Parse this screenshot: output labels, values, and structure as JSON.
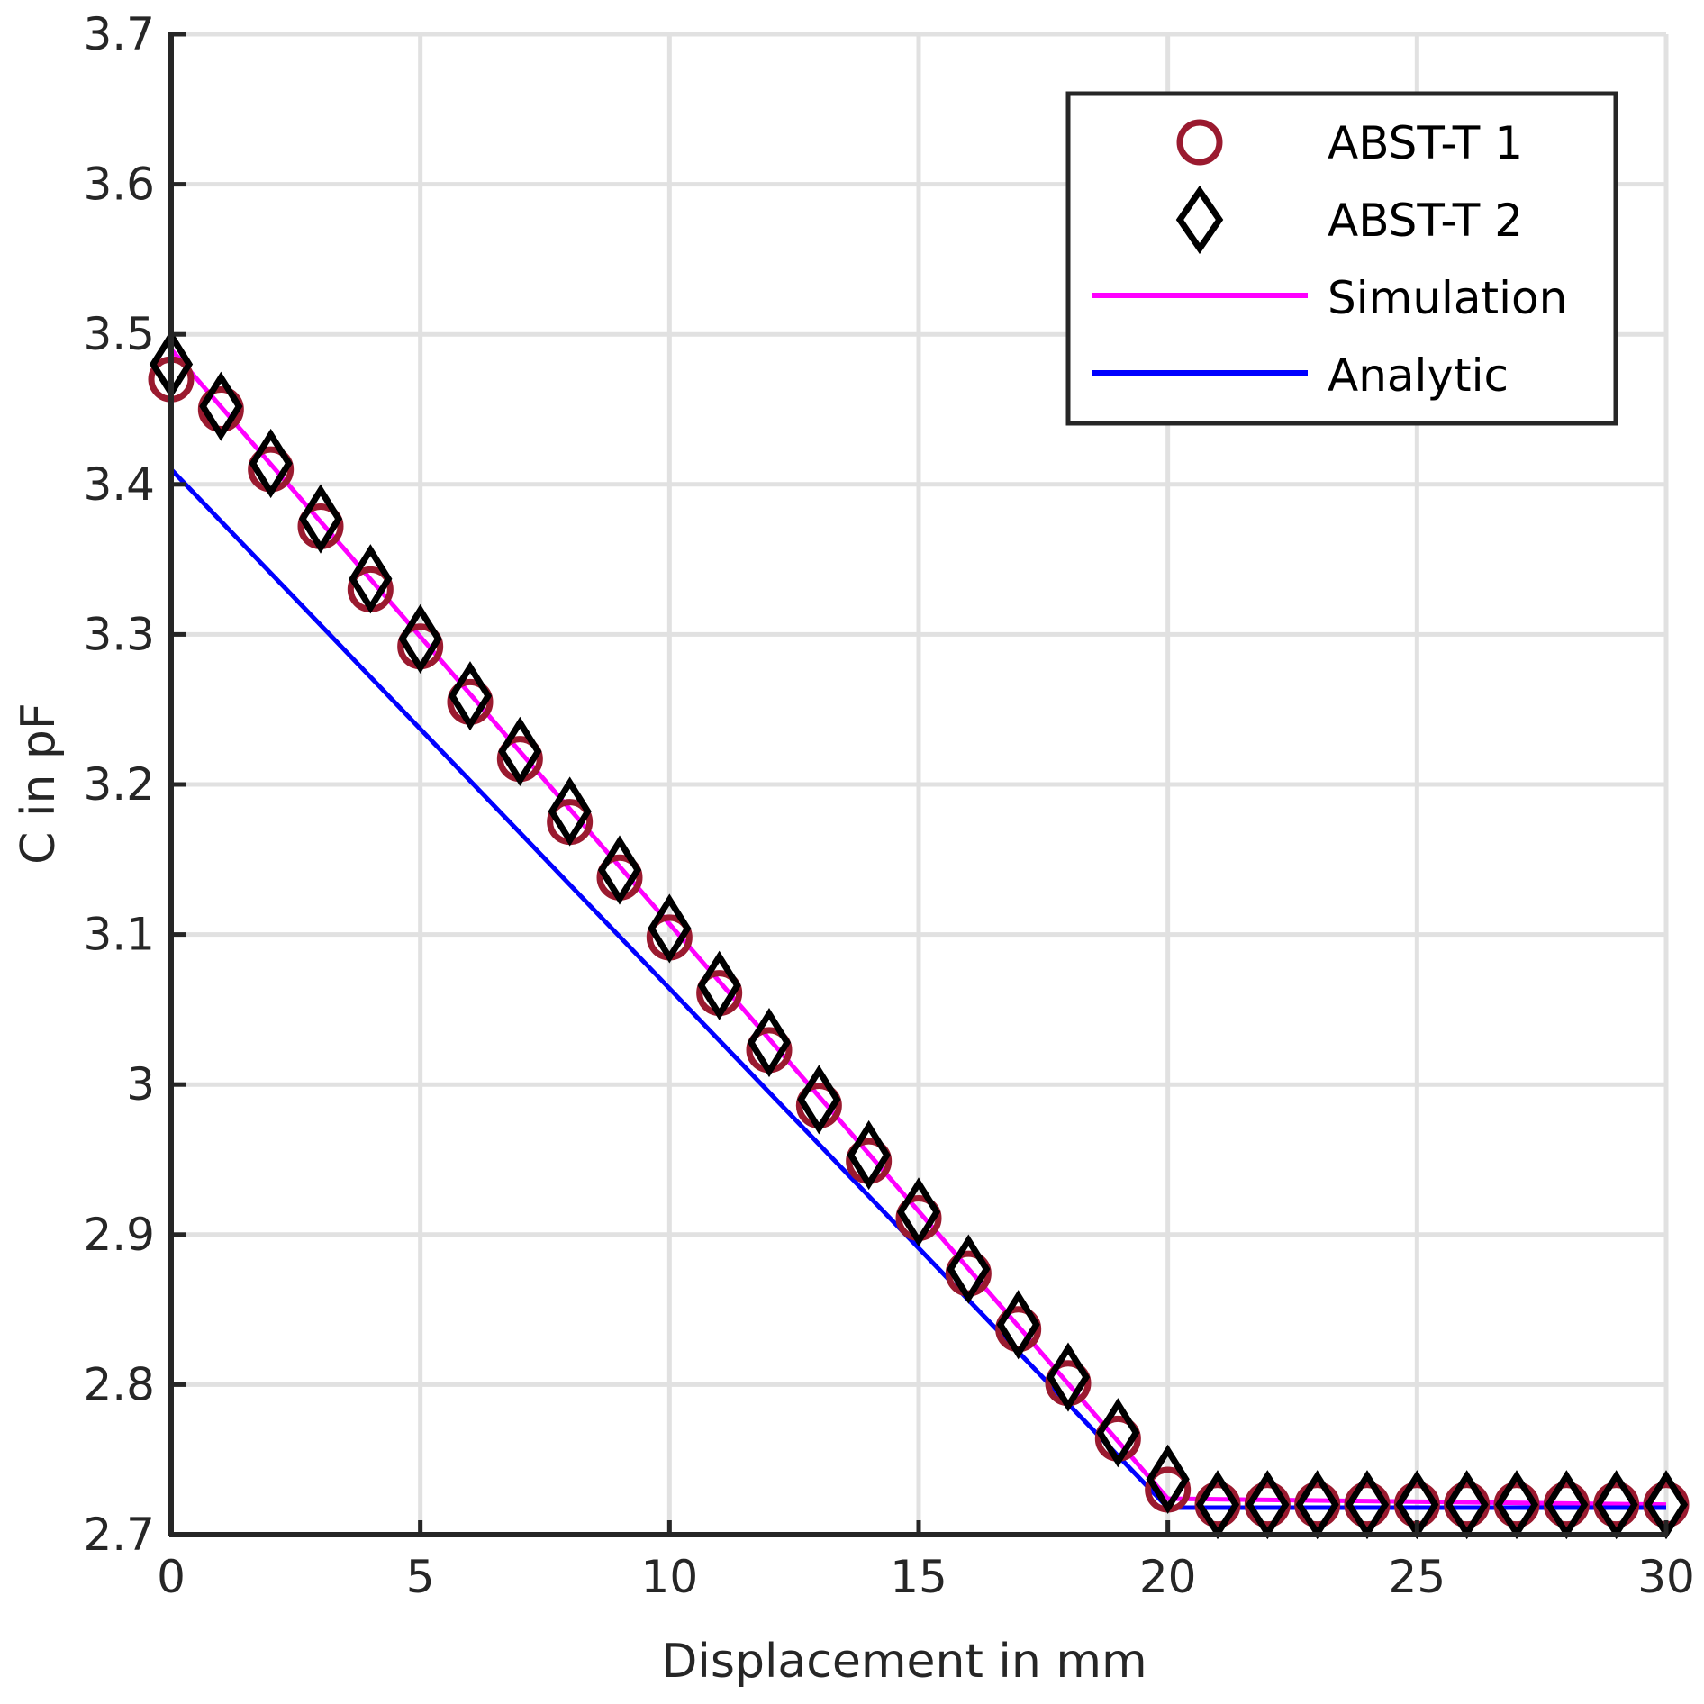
{
  "chart_data": {
    "type": "line",
    "xlabel": "Displacement in mm",
    "ylabel": "C in pF",
    "xlim": [
      0,
      30
    ],
    "ylim": [
      2.7,
      3.7
    ],
    "xticks": [
      "0",
      "5",
      "10",
      "15",
      "20",
      "25",
      "30"
    ],
    "yticks": [
      "2.7",
      "2.8",
      "2.9",
      "3",
      "3.1",
      "3.2",
      "3.3",
      "3.4",
      "3.5",
      "3.6",
      "3.7"
    ],
    "grid": true,
    "legend_position": "top-right",
    "series": [
      {
        "name": "ABST-T 1",
        "style": "circle-markers",
        "color": "#9a1a2f",
        "x": [
          0,
          1,
          2,
          3,
          4,
          5,
          6,
          7,
          8,
          9,
          10,
          11,
          12,
          13,
          14,
          15,
          16,
          17,
          18,
          19,
          20,
          21,
          22,
          23,
          24,
          25,
          26,
          27,
          28,
          29,
          30
        ],
        "y": [
          3.47,
          3.45,
          3.41,
          3.372,
          3.33,
          3.292,
          3.255,
          3.217,
          3.175,
          3.138,
          3.098,
          3.061,
          3.023,
          2.986,
          2.949,
          2.911,
          2.874,
          2.837,
          2.801,
          2.764,
          2.73,
          2.72,
          2.72,
          2.72,
          2.72,
          2.72,
          2.72,
          2.72,
          2.72,
          2.72,
          2.72
        ]
      },
      {
        "name": "ABST-T 2",
        "style": "diamond-markers",
        "color": "#000000",
        "x": [
          0,
          1,
          2,
          3,
          4,
          5,
          6,
          7,
          8,
          9,
          10,
          11,
          12,
          13,
          14,
          15,
          16,
          17,
          18,
          19,
          20,
          21,
          22,
          23,
          24,
          25,
          26,
          27,
          28,
          29,
          30
        ],
        "y": [
          3.48,
          3.452,
          3.414,
          3.377,
          3.337,
          3.297,
          3.259,
          3.222,
          3.182,
          3.143,
          3.104,
          3.066,
          3.028,
          2.99,
          2.953,
          2.915,
          2.877,
          2.84,
          2.805,
          2.768,
          2.737,
          2.72,
          2.72,
          2.72,
          2.72,
          2.72,
          2.72,
          2.72,
          2.72,
          2.72,
          2.72
        ]
      },
      {
        "name": "Simulation",
        "style": "line",
        "color": "#ff00ff",
        "x": [
          0,
          20,
          30
        ],
        "y": [
          3.49,
          2.724,
          2.72
        ]
      },
      {
        "name": "Analytic",
        "style": "line",
        "color": "#0000ff",
        "x": [
          0,
          20,
          30
        ],
        "y": [
          3.41,
          2.718,
          2.718
        ]
      }
    ]
  }
}
